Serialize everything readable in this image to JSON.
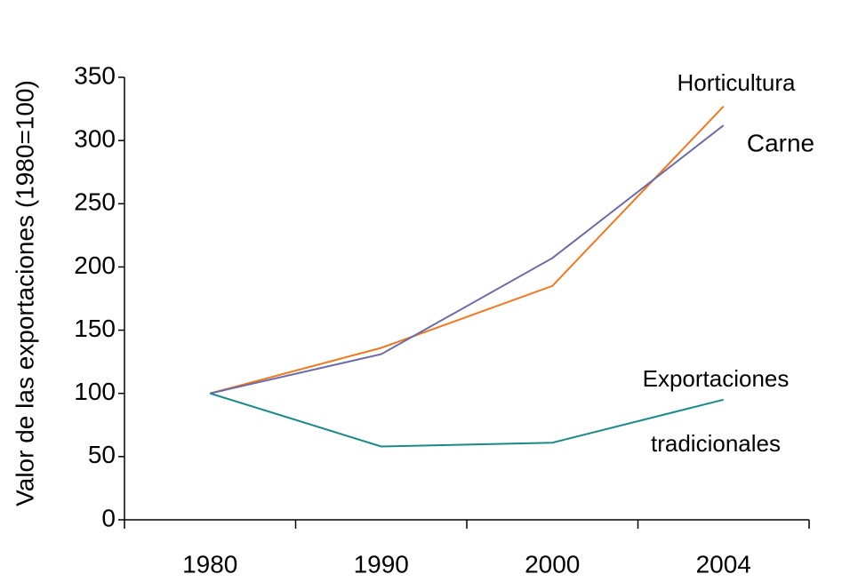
{
  "chart_data": {
    "type": "line",
    "ylabel": "Valor de las exportaciones (1980=100)",
    "categories": [
      "1980",
      "1990",
      "2000",
      "2004"
    ],
    "series": [
      {
        "name": "Horticultura",
        "color": "#f07820",
        "values": [
          100,
          136,
          185,
          327
        ]
      },
      {
        "name": "Carne",
        "color": "#6b6ba6",
        "values": [
          100,
          131,
          207,
          312
        ]
      },
      {
        "name": "Exportaciones tradicionales",
        "color": "#1a8a88",
        "values": [
          100,
          58,
          61,
          95
        ]
      }
    ],
    "ylim": [
      0,
      350
    ],
    "yticks": [
      0,
      50,
      100,
      150,
      200,
      250,
      300,
      350
    ],
    "grid": false
  }
}
